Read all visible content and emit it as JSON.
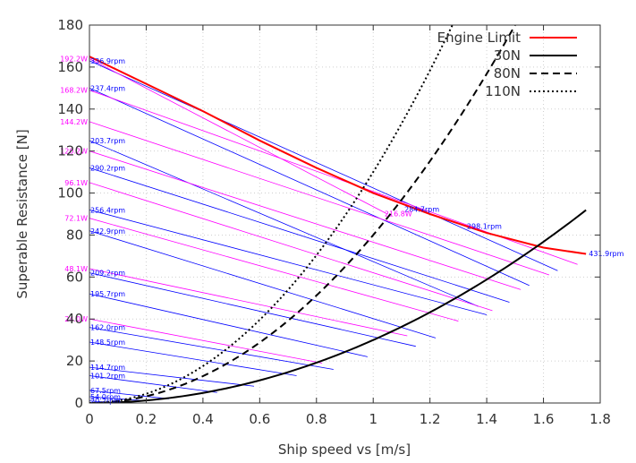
{
  "chart_data": {
    "type": "line",
    "title": "",
    "xlabel": "Ship speed vs [m/s]",
    "ylabel": "Superable Resistance [N]",
    "xlim": [
      0,
      1.8
    ],
    "ylim": [
      0,
      180
    ],
    "xticks": [
      0,
      0.2,
      0.4,
      0.6,
      0.8,
      1,
      1.2,
      1.4,
      1.6,
      1.8
    ],
    "xtick_labels": [
      "0",
      "0.2",
      "0.4",
      "0.6",
      "0.8",
      "1",
      "1.2",
      "1.4",
      "1.6",
      "1.8"
    ],
    "yticks": [
      0,
      20,
      40,
      60,
      80,
      100,
      120,
      140,
      160,
      180
    ],
    "ytick_labels": [
      "0",
      "20",
      "40",
      "60",
      "80",
      "100",
      "120",
      "140",
      "160",
      "180"
    ],
    "grid": true,
    "legend_position": "top-right",
    "colors": {
      "engine": "#ff0000",
      "power": "#ff00ff",
      "rpm": "#0000ff",
      "drag": "#000000"
    },
    "legend": [
      "Engine Limit",
      "30N",
      "80N",
      "110N"
    ],
    "series": [
      {
        "name": "Engine Limit",
        "style": "solid",
        "color": "#ff0000",
        "x": [
          0,
          0.2,
          0.4,
          0.6,
          0.8,
          1.0,
          1.2,
          1.4,
          1.6,
          1.75
        ],
        "y": [
          165,
          152,
          139,
          125,
          112,
          100,
          90,
          81,
          74,
          71
        ]
      },
      {
        "name": "30N",
        "style": "solid",
        "color": "#000000",
        "k": 30,
        "x": [
          0,
          0.2,
          0.4,
          0.6,
          0.8,
          1.0,
          1.2,
          1.4,
          1.6,
          1.75
        ],
        "y": [
          0,
          1.2,
          4.8,
          10.8,
          19.2,
          30,
          43.2,
          58.8,
          76.8,
          91.9
        ]
      },
      {
        "name": "80N",
        "style": "dashed",
        "color": "#000000",
        "k": 80,
        "x": [
          0,
          0.2,
          0.4,
          0.6,
          0.8,
          1.0,
          1.2,
          1.4,
          1.5
        ],
        "y": [
          0,
          3.2,
          12.8,
          28.8,
          51.2,
          80,
          115.2,
          156.8,
          180
        ]
      },
      {
        "name": "110N",
        "style": "dotted",
        "color": "#000000",
        "k": 110,
        "x": [
          0,
          0.2,
          0.4,
          0.6,
          0.8,
          1.0,
          1.2,
          1.28
        ],
        "y": [
          0,
          4.4,
          17.6,
          39.6,
          70.4,
          110,
          158.4,
          180.2
        ]
      }
    ],
    "power_lines": [
      {
        "label": "192.2W",
        "x": [
          0,
          1.05
        ],
        "y": [
          164,
          90
        ]
      },
      {
        "label": "168.2W",
        "x": [
          0,
          1.72
        ],
        "y": [
          149,
          66
        ]
      },
      {
        "label": "144.2W",
        "x": [
          0,
          1.62
        ],
        "y": [
          134,
          61
        ]
      },
      {
        "label": "120.2W",
        "x": [
          0,
          1.52
        ],
        "y": [
          120,
          54
        ]
      },
      {
        "label": "96.1W",
        "x": [
          0,
          1.42
        ],
        "y": [
          105,
          44
        ]
      },
      {
        "label": "72.1W",
        "x": [
          0,
          1.3
        ],
        "y": [
          88,
          39
        ]
      },
      {
        "label": "48.1W",
        "x": [
          0,
          1.12
        ],
        "y": [
          64,
          32
        ]
      },
      {
        "label": "24.0W",
        "x": [
          0,
          0.82
        ],
        "y": [
          40,
          19
        ]
      }
    ],
    "rpm_lines": [
      {
        "label": "336.9rpm",
        "x": [
          0,
          1.65
        ],
        "y": [
          163,
          63
        ]
      },
      {
        "label": "237.4rpm",
        "x": [
          0,
          1.55
        ],
        "y": [
          150,
          56
        ]
      },
      {
        "label": "203.7rpm",
        "x": [
          0,
          1.37
        ],
        "y": [
          125,
          46
        ]
      },
      {
        "label": "290.2rpm",
        "x": [
          0,
          1.48
        ],
        "y": [
          112,
          48
        ]
      },
      {
        "label": "256.4rpm",
        "x": [
          0,
          1.4
        ],
        "y": [
          92,
          42
        ]
      },
      {
        "label": "242.9rpm",
        "x": [
          0,
          1.22
        ],
        "y": [
          82,
          31
        ]
      },
      {
        "label": "209.2rpm",
        "x": [
          0,
          1.15
        ],
        "y": [
          62,
          27
        ]
      },
      {
        "label": "195.7rpm",
        "x": [
          0,
          0.98
        ],
        "y": [
          52,
          22
        ]
      },
      {
        "label": "162.0rpm",
        "x": [
          0,
          0.86
        ],
        "y": [
          36,
          16
        ]
      },
      {
        "label": "148.5rpm",
        "x": [
          0,
          0.73
        ],
        "y": [
          29,
          13
        ]
      },
      {
        "label": "114.7rpm",
        "x": [
          0,
          0.58
        ],
        "y": [
          17,
          8
        ]
      },
      {
        "label": "101.2rpm",
        "x": [
          0,
          0.45
        ],
        "y": [
          13,
          5
        ]
      },
      {
        "label": "67.5rpm",
        "x": [
          0,
          0.28
        ],
        "y": [
          6,
          2
        ]
      },
      {
        "label": "54.0rpm",
        "x": [
          0,
          0.2
        ],
        "y": [
          3,
          1
        ]
      },
      {
        "label": "20.2rpm",
        "x": [
          0,
          0.1
        ],
        "y": [
          1,
          0
        ]
      }
    ],
    "curve_labels": [
      {
        "label": "284.7rpm",
        "x": 1.11,
        "y": 91,
        "color": "#0000ff"
      },
      {
        "label": "216.8W",
        "x": 1.04,
        "y": 89,
        "color": "#ff00ff"
      },
      {
        "label": "298.1rpm",
        "x": 1.33,
        "y": 83,
        "color": "#0000ff"
      },
      {
        "label": "431.9rpm",
        "x": 1.76,
        "y": 70,
        "color": "#0000ff"
      }
    ]
  }
}
